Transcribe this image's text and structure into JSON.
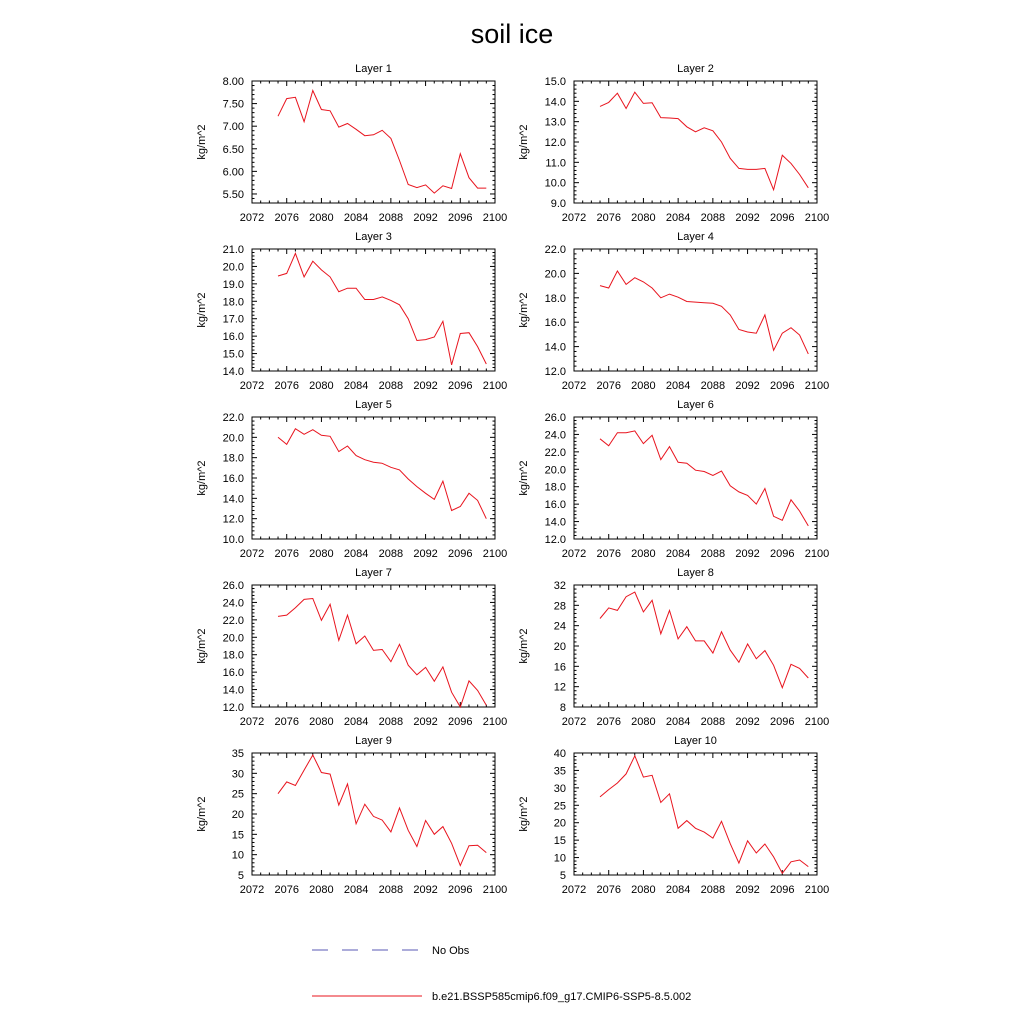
{
  "title": "soil ice",
  "legend": [
    {
      "label": "No Obs",
      "color": "#5a5ab4",
      "style": "dashed"
    },
    {
      "label": "b.e21.BSSP585cmip6.f09_g17.CMIP6-SSP5-8.5.002",
      "color": "#e8141e",
      "style": "solid"
    }
  ],
  "chart_data": [
    {
      "type": "line",
      "title": "Layer 1",
      "ylabel": "kg/m^2",
      "xlim": [
        2072,
        2100
      ],
      "ylim": [
        5.3,
        8.0
      ],
      "xticks": [
        "2072",
        "2076",
        "2080",
        "2084",
        "2088",
        "2092",
        "2096",
        "2100"
      ],
      "yticks": [
        "5.50",
        "6.00",
        "6.50",
        "7.00",
        "7.50",
        "8.00"
      ],
      "ytick_values": [
        5.5,
        6.0,
        6.5,
        7.0,
        7.5,
        8.0
      ],
      "x": [
        2075,
        2076,
        2077,
        2078,
        2079,
        2080,
        2081,
        2082,
        2083,
        2084,
        2085,
        2086,
        2087,
        2088,
        2089,
        2090,
        2091,
        2092,
        2093,
        2094,
        2095,
        2096,
        2097,
        2098,
        2099
      ],
      "series": [
        {
          "name": "b.e21.BSSP585cmip6.f09_g17.CMIP6-SSP5-8.5.002",
          "color": "#e8141e",
          "values": [
            7.22,
            7.61,
            7.64,
            7.1,
            7.79,
            7.37,
            7.34,
            6.98,
            7.06,
            6.93,
            6.79,
            6.81,
            6.91,
            6.73,
            6.24,
            5.71,
            5.64,
            5.7,
            5.52,
            5.68,
            5.62,
            6.39,
            5.86,
            5.63,
            5.63
          ]
        }
      ]
    },
    {
      "type": "line",
      "title": "Layer 2",
      "ylabel": "kg/m^2",
      "xlim": [
        2072,
        2100
      ],
      "ylim": [
        9.0,
        15.0
      ],
      "xticks": [
        "2072",
        "2076",
        "2080",
        "2084",
        "2088",
        "2092",
        "2096",
        "2100"
      ],
      "yticks": [
        "9.0",
        "10.0",
        "11.0",
        "12.0",
        "13.0",
        "14.0",
        "15.0"
      ],
      "ytick_values": [
        9,
        10,
        11,
        12,
        13,
        14,
        15
      ],
      "x": [
        2075,
        2076,
        2077,
        2078,
        2079,
        2080,
        2081,
        2082,
        2083,
        2084,
        2085,
        2086,
        2087,
        2088,
        2089,
        2090,
        2091,
        2092,
        2093,
        2094,
        2095,
        2096,
        2097,
        2098,
        2099
      ],
      "series": [
        {
          "name": "b.e21.BSSP585cmip6.f09_g17.CMIP6-SSP5-8.5.002",
          "color": "#e8141e",
          "values": [
            13.75,
            13.95,
            14.4,
            13.65,
            14.45,
            13.9,
            13.93,
            13.2,
            13.18,
            13.15,
            12.75,
            12.5,
            12.7,
            12.55,
            12.0,
            11.2,
            10.7,
            10.65,
            10.65,
            10.7,
            9.65,
            11.35,
            10.95,
            10.4,
            9.75
          ]
        }
      ]
    },
    {
      "type": "line",
      "title": "Layer 3",
      "ylabel": "kg/m^2",
      "xlim": [
        2072,
        2100
      ],
      "ylim": [
        14.0,
        21.0
      ],
      "xticks": [
        "2072",
        "2076",
        "2080",
        "2084",
        "2088",
        "2092",
        "2096",
        "2100"
      ],
      "yticks": [
        "14.0",
        "15.0",
        "16.0",
        "17.0",
        "18.0",
        "19.0",
        "20.0",
        "21.0"
      ],
      "ytick_values": [
        14,
        15,
        16,
        17,
        18,
        19,
        20,
        21
      ],
      "x": [
        2075,
        2076,
        2077,
        2078,
        2079,
        2080,
        2081,
        2082,
        2083,
        2084,
        2085,
        2086,
        2087,
        2088,
        2089,
        2090,
        2091,
        2092,
        2093,
        2094,
        2095,
        2096,
        2097,
        2098,
        2099
      ],
      "series": [
        {
          "name": "b.e21.BSSP585cmip6.f09_g17.CMIP6-SSP5-8.5.002",
          "color": "#e8141e",
          "values": [
            19.45,
            19.6,
            20.75,
            19.4,
            20.3,
            19.8,
            19.4,
            18.55,
            18.75,
            18.75,
            18.1,
            18.1,
            18.25,
            18.05,
            17.8,
            17.0,
            15.75,
            15.8,
            15.95,
            16.85,
            14.35,
            16.15,
            16.2,
            15.4,
            14.4
          ]
        }
      ]
    },
    {
      "type": "line",
      "title": "Layer 4",
      "ylabel": "kg/m^2",
      "xlim": [
        2072,
        2100
      ],
      "ylim": [
        12.0,
        22.0
      ],
      "xticks": [
        "2072",
        "2076",
        "2080",
        "2084",
        "2088",
        "2092",
        "2096",
        "2100"
      ],
      "yticks": [
        "12.0",
        "14.0",
        "16.0",
        "18.0",
        "20.0",
        "22.0"
      ],
      "ytick_values": [
        12,
        14,
        16,
        18,
        20,
        22
      ],
      "x": [
        2075,
        2076,
        2077,
        2078,
        2079,
        2080,
        2081,
        2082,
        2083,
        2084,
        2085,
        2086,
        2087,
        2088,
        2089,
        2090,
        2091,
        2092,
        2093,
        2094,
        2095,
        2096,
        2097,
        2098,
        2099
      ],
      "series": [
        {
          "name": "b.e21.BSSP585cmip6.f09_g17.CMIP6-SSP5-8.5.002",
          "color": "#e8141e",
          "values": [
            19.0,
            18.8,
            20.2,
            19.1,
            19.65,
            19.3,
            18.8,
            18.0,
            18.3,
            18.05,
            17.7,
            17.65,
            17.6,
            17.55,
            17.3,
            16.6,
            15.4,
            15.2,
            15.1,
            16.6,
            13.7,
            15.1,
            15.55,
            14.95,
            13.4
          ]
        }
      ]
    },
    {
      "type": "line",
      "title": "Layer 5",
      "ylabel": "kg/m^2",
      "xlim": [
        2072,
        2100
      ],
      "ylim": [
        10.0,
        22.0
      ],
      "xticks": [
        "2072",
        "2076",
        "2080",
        "2084",
        "2088",
        "2092",
        "2096",
        "2100"
      ],
      "yticks": [
        "10.0",
        "12.0",
        "14.0",
        "16.0",
        "18.0",
        "20.0",
        "22.0"
      ],
      "ytick_values": [
        10,
        12,
        14,
        16,
        18,
        20,
        22
      ],
      "x": [
        2075,
        2076,
        2077,
        2078,
        2079,
        2080,
        2081,
        2082,
        2083,
        2084,
        2085,
        2086,
        2087,
        2088,
        2089,
        2090,
        2091,
        2092,
        2093,
        2094,
        2095,
        2096,
        2097,
        2098,
        2099
      ],
      "series": [
        {
          "name": "b.e21.BSSP585cmip6.f09_g17.CMIP6-SSP5-8.5.002",
          "color": "#e8141e",
          "values": [
            20.0,
            19.3,
            20.85,
            20.3,
            20.75,
            20.2,
            20.1,
            18.6,
            19.15,
            18.2,
            17.8,
            17.55,
            17.45,
            17.05,
            16.8,
            15.9,
            15.15,
            14.5,
            13.9,
            15.7,
            12.8,
            13.2,
            14.5,
            13.8,
            12.0
          ]
        }
      ]
    },
    {
      "type": "line",
      "title": "Layer 6",
      "ylabel": "kg/m^2",
      "xlim": [
        2072,
        2100
      ],
      "ylim": [
        12.0,
        26.0
      ],
      "xticks": [
        "2072",
        "2076",
        "2080",
        "2084",
        "2088",
        "2092",
        "2096",
        "2100"
      ],
      "yticks": [
        "12.0",
        "14.0",
        "16.0",
        "18.0",
        "20.0",
        "22.0",
        "24.0",
        "26.0"
      ],
      "ytick_values": [
        12,
        14,
        16,
        18,
        20,
        22,
        24,
        26
      ],
      "x": [
        2075,
        2076,
        2077,
        2078,
        2079,
        2080,
        2081,
        2082,
        2083,
        2084,
        2085,
        2086,
        2087,
        2088,
        2089,
        2090,
        2091,
        2092,
        2093,
        2094,
        2095,
        2096,
        2097,
        2098,
        2099
      ],
      "series": [
        {
          "name": "b.e21.BSSP585cmip6.f09_g17.CMIP6-SSP5-8.5.002",
          "color": "#e8141e",
          "values": [
            23.5,
            22.7,
            24.2,
            24.2,
            24.4,
            22.95,
            23.9,
            21.1,
            22.6,
            20.8,
            20.7,
            19.9,
            19.75,
            19.3,
            19.8,
            18.1,
            17.4,
            17.0,
            16.0,
            17.8,
            14.6,
            14.15,
            16.5,
            15.2,
            13.5
          ]
        }
      ]
    },
    {
      "type": "line",
      "title": "Layer 7",
      "ylabel": "kg/m^2",
      "xlim": [
        2072,
        2100
      ],
      "ylim": [
        12.0,
        26.0
      ],
      "xticks": [
        "2072",
        "2076",
        "2080",
        "2084",
        "2088",
        "2092",
        "2096",
        "2100"
      ],
      "yticks": [
        "12.0",
        "14.0",
        "16.0",
        "18.0",
        "20.0",
        "22.0",
        "24.0",
        "26.0"
      ],
      "ytick_values": [
        12,
        14,
        16,
        18,
        20,
        22,
        24,
        26
      ],
      "x": [
        2075,
        2076,
        2077,
        2078,
        2079,
        2080,
        2081,
        2082,
        2083,
        2084,
        2085,
        2086,
        2087,
        2088,
        2089,
        2090,
        2091,
        2092,
        2093,
        2094,
        2095,
        2096,
        2097,
        2098,
        2099
      ],
      "series": [
        {
          "name": "b.e21.BSSP585cmip6.f09_g17.CMIP6-SSP5-8.5.002",
          "color": "#e8141e",
          "values": [
            22.4,
            22.55,
            23.4,
            24.35,
            24.45,
            21.95,
            23.8,
            19.65,
            22.55,
            19.25,
            20.15,
            18.5,
            18.6,
            17.2,
            19.2,
            16.8,
            15.7,
            16.55,
            14.95,
            16.6,
            13.7,
            12.0,
            15.0,
            13.9,
            12.2
          ]
        }
      ]
    },
    {
      "type": "line",
      "title": "Layer 8",
      "ylabel": "kg/m^2",
      "xlim": [
        2072,
        2100
      ],
      "ylim": [
        8,
        32
      ],
      "xticks": [
        "2072",
        "2076",
        "2080",
        "2084",
        "2088",
        "2092",
        "2096",
        "2100"
      ],
      "yticks": [
        "8",
        "12",
        "16",
        "20",
        "24",
        "28",
        "32"
      ],
      "ytick_values": [
        8,
        12,
        16,
        20,
        24,
        28,
        32
      ],
      "x": [
        2075,
        2076,
        2077,
        2078,
        2079,
        2080,
        2081,
        2082,
        2083,
        2084,
        2085,
        2086,
        2087,
        2088,
        2089,
        2090,
        2091,
        2092,
        2093,
        2094,
        2095,
        2096,
        2097,
        2098,
        2099
      ],
      "series": [
        {
          "name": "b.e21.BSSP585cmip6.f09_g17.CMIP6-SSP5-8.5.002",
          "color": "#e8141e",
          "values": [
            25.4,
            27.5,
            27.0,
            29.7,
            30.6,
            26.7,
            29.0,
            22.4,
            27.0,
            21.4,
            23.8,
            21.0,
            21.0,
            18.6,
            22.8,
            19.2,
            16.8,
            20.4,
            17.5,
            19.1,
            16.2,
            11.8,
            16.4,
            15.6,
            13.7
          ]
        }
      ]
    },
    {
      "type": "line",
      "title": "Layer 9",
      "ylabel": "kg/m^2",
      "xlim": [
        2072,
        2100
      ],
      "ylim": [
        5,
        35
      ],
      "xticks": [
        "2072",
        "2076",
        "2080",
        "2084",
        "2088",
        "2092",
        "2096",
        "2100"
      ],
      "yticks": [
        "5",
        "10",
        "15",
        "20",
        "25",
        "30",
        "35"
      ],
      "ytick_values": [
        5,
        10,
        15,
        20,
        25,
        30,
        35
      ],
      "x": [
        2075,
        2076,
        2077,
        2078,
        2079,
        2080,
        2081,
        2082,
        2083,
        2084,
        2085,
        2086,
        2087,
        2088,
        2089,
        2090,
        2091,
        2092,
        2093,
        2094,
        2095,
        2096,
        2097,
        2098,
        2099
      ],
      "series": [
        {
          "name": "b.e21.BSSP585cmip6.f09_g17.CMIP6-SSP5-8.5.002",
          "color": "#e8141e",
          "values": [
            25.0,
            27.9,
            27.0,
            30.8,
            34.5,
            30.2,
            29.8,
            22.2,
            27.4,
            17.6,
            22.4,
            19.4,
            18.5,
            15.6,
            21.5,
            16.0,
            12.0,
            18.4,
            15.0,
            16.9,
            12.8,
            7.3,
            12.2,
            12.3,
            10.5
          ]
        }
      ]
    },
    {
      "type": "line",
      "title": "Layer 10",
      "ylabel": "kg/m^2",
      "xlim": [
        2072,
        2100
      ],
      "ylim": [
        5,
        40
      ],
      "xticks": [
        "2072",
        "2076",
        "2080",
        "2084",
        "2088",
        "2092",
        "2096",
        "2100"
      ],
      "yticks": [
        "5",
        "10",
        "15",
        "20",
        "25",
        "30",
        "35",
        "40"
      ],
      "ytick_values": [
        5,
        10,
        15,
        20,
        25,
        30,
        35,
        40
      ],
      "x": [
        2075,
        2076,
        2077,
        2078,
        2079,
        2080,
        2081,
        2082,
        2083,
        2084,
        2085,
        2086,
        2087,
        2088,
        2089,
        2090,
        2091,
        2092,
        2093,
        2094,
        2095,
        2096,
        2097,
        2098,
        2099
      ],
      "series": [
        {
          "name": "b.e21.BSSP585cmip6.f09_g17.CMIP6-SSP5-8.5.002",
          "color": "#e8141e",
          "values": [
            27.4,
            29.5,
            31.4,
            34.0,
            39.2,
            33.1,
            33.6,
            25.8,
            28.3,
            18.4,
            20.6,
            18.4,
            17.3,
            15.6,
            20.4,
            14.0,
            8.4,
            14.8,
            11.3,
            13.9,
            10.2,
            5.5,
            8.8,
            9.3,
            7.4
          ]
        }
      ]
    }
  ]
}
